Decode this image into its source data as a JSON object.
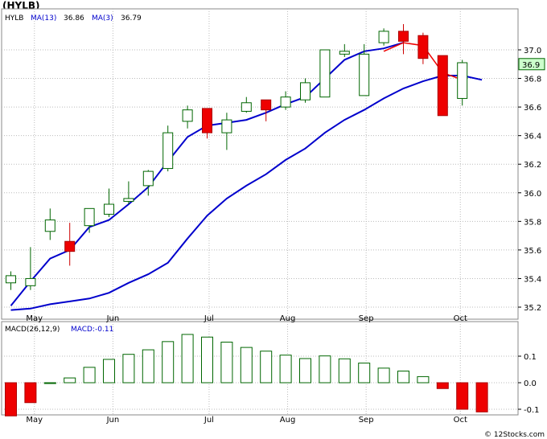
{
  "title": "(HYLB)",
  "chart_data": [
    {
      "type": "candlestick",
      "legend": [
        {
          "name": "HYLB",
          "color": "#000000"
        },
        {
          "name": "MA(13)",
          "value": "36.86",
          "color": "#0000cc"
        },
        {
          "name": "MA(3)",
          "value": "36.79",
          "color": "#0000cc"
        }
      ],
      "last_price_label": "36.9",
      "ylim": [
        35.15,
        37.2
      ],
      "yticks": [
        35.2,
        35.4,
        35.6,
        35.8,
        36.0,
        36.2,
        36.4,
        36.6,
        36.8,
        37.0
      ],
      "ytick_labels": [
        "35.2",
        "35.4",
        "35.6",
        "35.8",
        "36.0",
        "36.2",
        "36.4",
        "36.6",
        "36.8",
        "37.0"
      ],
      "months": [
        {
          "label": "May",
          "index": 1.2
        },
        {
          "label": "Jun",
          "index": 5.2
        },
        {
          "label": "Jul",
          "index": 10.1
        },
        {
          "label": "Aug",
          "index": 14.1
        },
        {
          "label": "Sep",
          "index": 18.1
        },
        {
          "label": "Oct",
          "index": 22.9
        }
      ],
      "candles": [
        {
          "o": 35.37,
          "h": 35.45,
          "l": 35.32,
          "c": 35.42
        },
        {
          "o": 35.35,
          "h": 35.62,
          "l": 35.32,
          "c": 35.4
        },
        {
          "o": 35.73,
          "h": 35.89,
          "l": 35.67,
          "c": 35.81
        },
        {
          "o": 35.66,
          "h": 35.79,
          "l": 35.49,
          "c": 35.59
        },
        {
          "o": 35.77,
          "h": 35.89,
          "l": 35.72,
          "c": 35.89
        },
        {
          "o": 35.85,
          "h": 36.03,
          "l": 35.83,
          "c": 35.92
        },
        {
          "o": 35.94,
          "h": 36.08,
          "l": 35.92,
          "c": 35.96
        },
        {
          "o": 36.05,
          "h": 36.16,
          "l": 35.98,
          "c": 36.15
        },
        {
          "o": 36.17,
          "h": 36.47,
          "l": 36.15,
          "c": 36.42
        },
        {
          "o": 36.5,
          "h": 36.61,
          "l": 36.45,
          "c": 36.58
        },
        {
          "o": 36.59,
          "h": 36.59,
          "l": 36.38,
          "c": 36.42
        },
        {
          "o": 36.42,
          "h": 36.56,
          "l": 36.3,
          "c": 36.51
        },
        {
          "o": 36.57,
          "h": 36.67,
          "l": 36.56,
          "c": 36.63
        },
        {
          "o": 36.65,
          "h": 36.65,
          "l": 36.5,
          "c": 36.58
        },
        {
          "o": 36.6,
          "h": 36.71,
          "l": 36.58,
          "c": 36.67
        },
        {
          "o": 36.65,
          "h": 36.8,
          "l": 36.63,
          "c": 36.77
        },
        {
          "o": 36.67,
          "h": 37.0,
          "l": 36.67,
          "c": 37.0
        },
        {
          "o": 36.97,
          "h": 37.04,
          "l": 36.95,
          "c": 36.99
        },
        {
          "o": 36.68,
          "h": 37.04,
          "l": 36.68,
          "c": 36.97
        },
        {
          "o": 37.05,
          "h": 37.15,
          "l": 37.03,
          "c": 37.13
        },
        {
          "o": 37.13,
          "h": 37.18,
          "l": 36.97,
          "c": 37.06
        },
        {
          "o": 37.1,
          "h": 37.12,
          "l": 36.9,
          "c": 36.94
        },
        {
          "o": 36.96,
          "h": 36.96,
          "l": 36.55,
          "c": 36.54
        },
        {
          "o": 36.66,
          "h": 36.93,
          "l": 36.61,
          "c": 36.91
        }
      ],
      "ma13": [
        35.21,
        35.38,
        35.54,
        35.6,
        35.76,
        35.81,
        35.92,
        36.04,
        36.22,
        36.39,
        36.47,
        36.49,
        36.51,
        36.56,
        36.62,
        36.67,
        36.8,
        36.93,
        36.99,
        37.01,
        37.05,
        37.06,
        36.95,
        36.82,
        36.82,
        36.86
      ],
      "ma3": [
        35.18,
        35.19,
        35.22,
        35.24,
        35.26,
        35.3,
        35.37,
        35.43,
        35.51,
        35.68,
        35.84,
        35.96,
        36.05,
        36.13,
        36.23,
        36.31,
        36.42,
        36.51,
        36.58,
        36.66,
        36.73,
        36.78,
        36.82,
        36.82,
        36.79
      ],
      "ma3_red_tail": [
        36.99,
        37.05,
        37.03,
        36.84,
        36.79
      ]
    },
    {
      "type": "bar",
      "legend": [
        {
          "name": "MACD(26,12,9)",
          "color": "#000000"
        },
        {
          "name": "MACD:-0.11",
          "color": "#0000cc"
        }
      ],
      "ylim": [
        -0.125,
        0.185
      ],
      "yticks": [
        0.1,
        0.0,
        -0.1
      ],
      "ytick_labels": [
        "0.1",
        "0.0",
        "-0.1"
      ],
      "values": [
        -0.125,
        -0.075,
        0.0,
        0.018,
        0.058,
        0.088,
        0.107,
        0.124,
        0.155,
        0.182,
        0.172,
        0.153,
        0.133,
        0.119,
        0.104,
        0.091,
        0.101,
        0.09,
        0.074,
        0.055,
        0.044,
        0.023,
        -0.022,
        -0.1,
        -0.11
      ]
    }
  ],
  "watermark": "© 12Stocks.com"
}
